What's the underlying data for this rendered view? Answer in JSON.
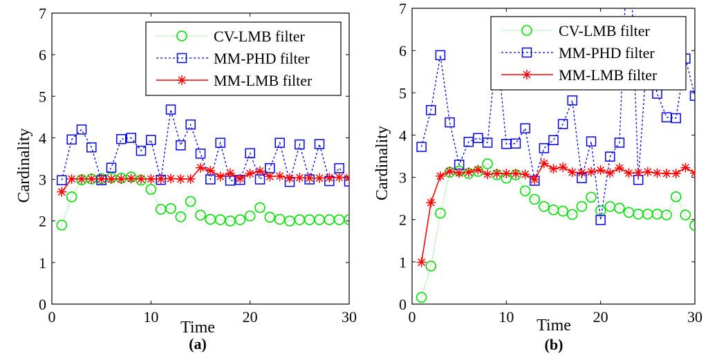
{
  "chart_data": [
    {
      "type": "line",
      "panel_label": "(a)",
      "xlabel": "Time",
      "ylabel": "Cardinality",
      "xlim": [
        0,
        30
      ],
      "ylim": [
        0,
        7
      ],
      "xticks": [
        "0",
        "10",
        "20",
        "30"
      ],
      "yticks": [
        "0",
        "1",
        "2",
        "3",
        "4",
        "5",
        "6",
        "7"
      ],
      "grid": false,
      "legend_position": "top-right",
      "x": [
        1,
        2,
        3,
        4,
        5,
        6,
        7,
        8,
        9,
        10,
        11,
        12,
        13,
        14,
        15,
        16,
        17,
        18,
        19,
        20,
        21,
        22,
        23,
        24,
        25,
        26,
        27,
        28,
        29,
        30
      ],
      "series": [
        {
          "name": "CV-LMB filter",
          "color": "#00e000",
          "line": "dotted",
          "marker": "circle",
          "values": [
            1.9,
            2.58,
            2.99,
            3.01,
            3.02,
            3.04,
            3.03,
            3.06,
            2.98,
            2.76,
            2.28,
            2.3,
            2.1,
            2.47,
            2.14,
            2.04,
            2.03,
            2.0,
            2.03,
            2.12,
            2.32,
            2.09,
            2.04,
            2.0,
            2.03,
            2.03,
            2.03,
            2.03,
            2.03,
            2.03
          ]
        },
        {
          "name": "MM-PHD filter",
          "color": "#0000ee",
          "line": "dashed",
          "marker": "square",
          "values": [
            2.98,
            3.96,
            4.2,
            3.77,
            2.98,
            3.28,
            3.97,
            4.0,
            3.69,
            3.95,
            2.99,
            4.68,
            3.82,
            4.32,
            3.62,
            3.0,
            3.88,
            2.97,
            2.99,
            3.63,
            3.0,
            3.27,
            3.88,
            2.94,
            3.84,
            3.0,
            3.85,
            2.96,
            3.27,
            2.95
          ]
        },
        {
          "name": "MM-LMB filter",
          "color": "#ff0000",
          "line": "solid",
          "marker": "asterisk",
          "values": [
            2.7,
            3.01,
            3.01,
            3.01,
            3.01,
            3.01,
            3.01,
            3.02,
            3.01,
            3.01,
            3.01,
            3.02,
            3.01,
            3.01,
            3.28,
            3.21,
            3.07,
            3.15,
            3.02,
            3.14,
            3.2,
            3.07,
            3.08,
            3.03,
            3.04,
            3.03,
            3.03,
            3.04,
            3.05,
            3.04
          ]
        }
      ]
    },
    {
      "type": "line",
      "panel_label": "(b)",
      "xlabel": "Time",
      "ylabel": "Cardinality",
      "xlim": [
        0,
        30
      ],
      "ylim": [
        0,
        7
      ],
      "xticks": [
        "0",
        "10",
        "20",
        "30"
      ],
      "yticks": [
        "0",
        "1",
        "2",
        "3",
        "4",
        "5",
        "6",
        "7"
      ],
      "grid": false,
      "legend_position": "top-right",
      "x": [
        1,
        2,
        3,
        4,
        5,
        6,
        7,
        8,
        9,
        10,
        11,
        12,
        13,
        14,
        15,
        16,
        17,
        18,
        19,
        20,
        21,
        22,
        23,
        24,
        25,
        26,
        27,
        28,
        29,
        30
      ],
      "series": [
        {
          "name": "CV-LMB filter",
          "color": "#00e000",
          "line": "dotted",
          "marker": "circle",
          "values": [
            0.16,
            0.9,
            2.15,
            3.12,
            3.15,
            3.09,
            3.14,
            3.32,
            3.06,
            2.98,
            3.06,
            2.68,
            2.48,
            2.31,
            2.23,
            2.2,
            2.12,
            2.31,
            2.53,
            2.21,
            2.31,
            2.27,
            2.17,
            2.13,
            2.13,
            2.13,
            2.11,
            2.54,
            2.11,
            1.86
          ]
        },
        {
          "name": "MM-PHD filter",
          "color": "#0000ee",
          "line": "dashed",
          "marker": "square",
          "values": [
            3.72,
            4.59,
            5.89,
            4.3,
            3.3,
            3.84,
            3.93,
            3.82,
            6.1,
            3.79,
            3.8,
            4.16,
            2.92,
            3.69,
            3.88,
            4.26,
            4.82,
            2.98,
            3.85,
            1.99,
            3.49,
            3.82,
            9.3,
            2.94,
            6.15,
            4.98,
            4.42,
            4.4,
            5.81,
            4.93
          ]
        },
        {
          "name": "MM-LMB filter",
          "color": "#ff0000",
          "line": "solid",
          "marker": "asterisk",
          "values": [
            0.99,
            2.4,
            3.03,
            3.14,
            3.1,
            3.12,
            3.18,
            3.07,
            3.09,
            3.09,
            3.09,
            3.07,
            2.95,
            3.33,
            3.2,
            3.24,
            3.12,
            3.11,
            3.13,
            3.17,
            3.1,
            3.22,
            3.1,
            3.11,
            3.13,
            3.1,
            3.09,
            3.09,
            3.23,
            3.1
          ]
        }
      ]
    }
  ]
}
